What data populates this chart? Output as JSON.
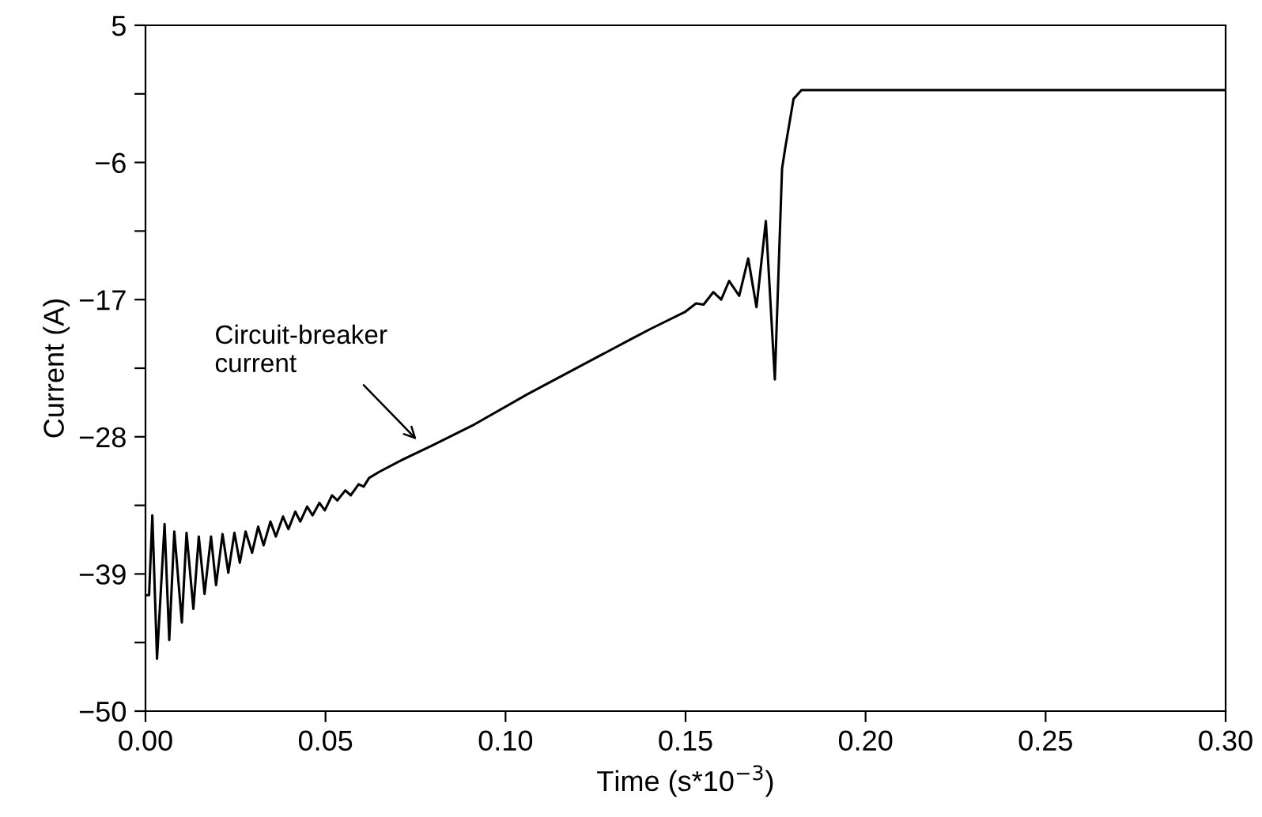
{
  "chart_data": {
    "type": "line",
    "xlabel": "Time (s*10$^{−3}$)",
    "ylabel": "Current (A)",
    "x": [
      0,
      0.001,
      0.0019,
      0.0032,
      0.0053,
      0.0066,
      0.008,
      0.0101,
      0.0114,
      0.0133,
      0.0148,
      0.0164,
      0.0182,
      0.0196,
      0.0214,
      0.023,
      0.0247,
      0.0262,
      0.0278,
      0.0296,
      0.0313,
      0.0328,
      0.0347,
      0.0362,
      0.0382,
      0.0397,
      0.0416,
      0.043,
      0.0449,
      0.0464,
      0.0483,
      0.0498,
      0.0518,
      0.0533,
      0.0555,
      0.057,
      0.0592,
      0.0606,
      0.0621,
      0.065,
      0.0709,
      0.0796,
      0.0914,
      0.106,
      0.1353,
      0.1406,
      0.1498,
      0.1529,
      0.155,
      0.1577,
      0.1599,
      0.1621,
      0.1649,
      0.1674,
      0.1697,
      0.1723,
      0.1748,
      0.1768,
      0.1777,
      0.18,
      0.1822,
      0.3
    ],
    "series": [
      {
        "color": "#000000",
        "values": [
          -40.7,
          -40.7,
          -34.3,
          -45.8,
          -35.0,
          -44.3,
          -35.6,
          -42.9,
          -35.7,
          -41.8,
          -36.0,
          -40.6,
          -36.0,
          -39.9,
          -35.8,
          -38.9,
          -35.7,
          -38.1,
          -35.6,
          -37.3,
          -35.2,
          -36.7,
          -34.8,
          -36.0,
          -34.4,
          -35.4,
          -34.0,
          -34.8,
          -33.6,
          -34.3,
          -33.3,
          -33.9,
          -32.7,
          -33.1,
          -32.3,
          -32.7,
          -31.8,
          -32.0,
          -31.3,
          -30.8,
          -29.9,
          -28.7,
          -27.0,
          -24.6,
          -20.1,
          -19.3,
          -18.0,
          -17.3,
          -17.4,
          -16.4,
          -17.0,
          -15.5,
          -16.7,
          -13.7,
          -17.6,
          -10.7,
          -23.4,
          -6.5,
          -4.8,
          -0.9,
          -0.2,
          -0.2
        ]
      }
    ],
    "xlim": [
      0,
      0.3
    ],
    "xticks": [
      {
        "value": 0,
        "label": "0.00"
      },
      {
        "value": 0.05,
        "label": "0.05"
      },
      {
        "value": 0.1,
        "label": "0.10"
      },
      {
        "value": 0.15,
        "label": "0.15"
      },
      {
        "value": 0.2,
        "label": "0.20"
      },
      {
        "value": 0.25,
        "label": "0.25"
      },
      {
        "value": 0.3,
        "label": "0.30"
      }
    ],
    "ylim": [
      -50,
      5
    ],
    "yticks": [
      5,
      {
        "value": -0.5,
        "label": null
      },
      {
        "value": -6,
        "label": "−6"
      },
      {
        "value": -11.5,
        "label": null
      },
      {
        "value": -17,
        "label": "−17"
      },
      {
        "value": -22.5,
        "label": null
      },
      {
        "value": -28,
        "label": "−28"
      },
      {
        "value": -33.5,
        "label": null
      },
      {
        "value": -39,
        "label": "−39"
      },
      {
        "value": -44.5,
        "label": null
      },
      {
        "value": -50,
        "label": "−50"
      }
    ],
    "annotations": [
      "Circuit-breaker\ncurrent"
    ],
    "grid": false,
    "marker": "none",
    "line_style": "solid"
  }
}
